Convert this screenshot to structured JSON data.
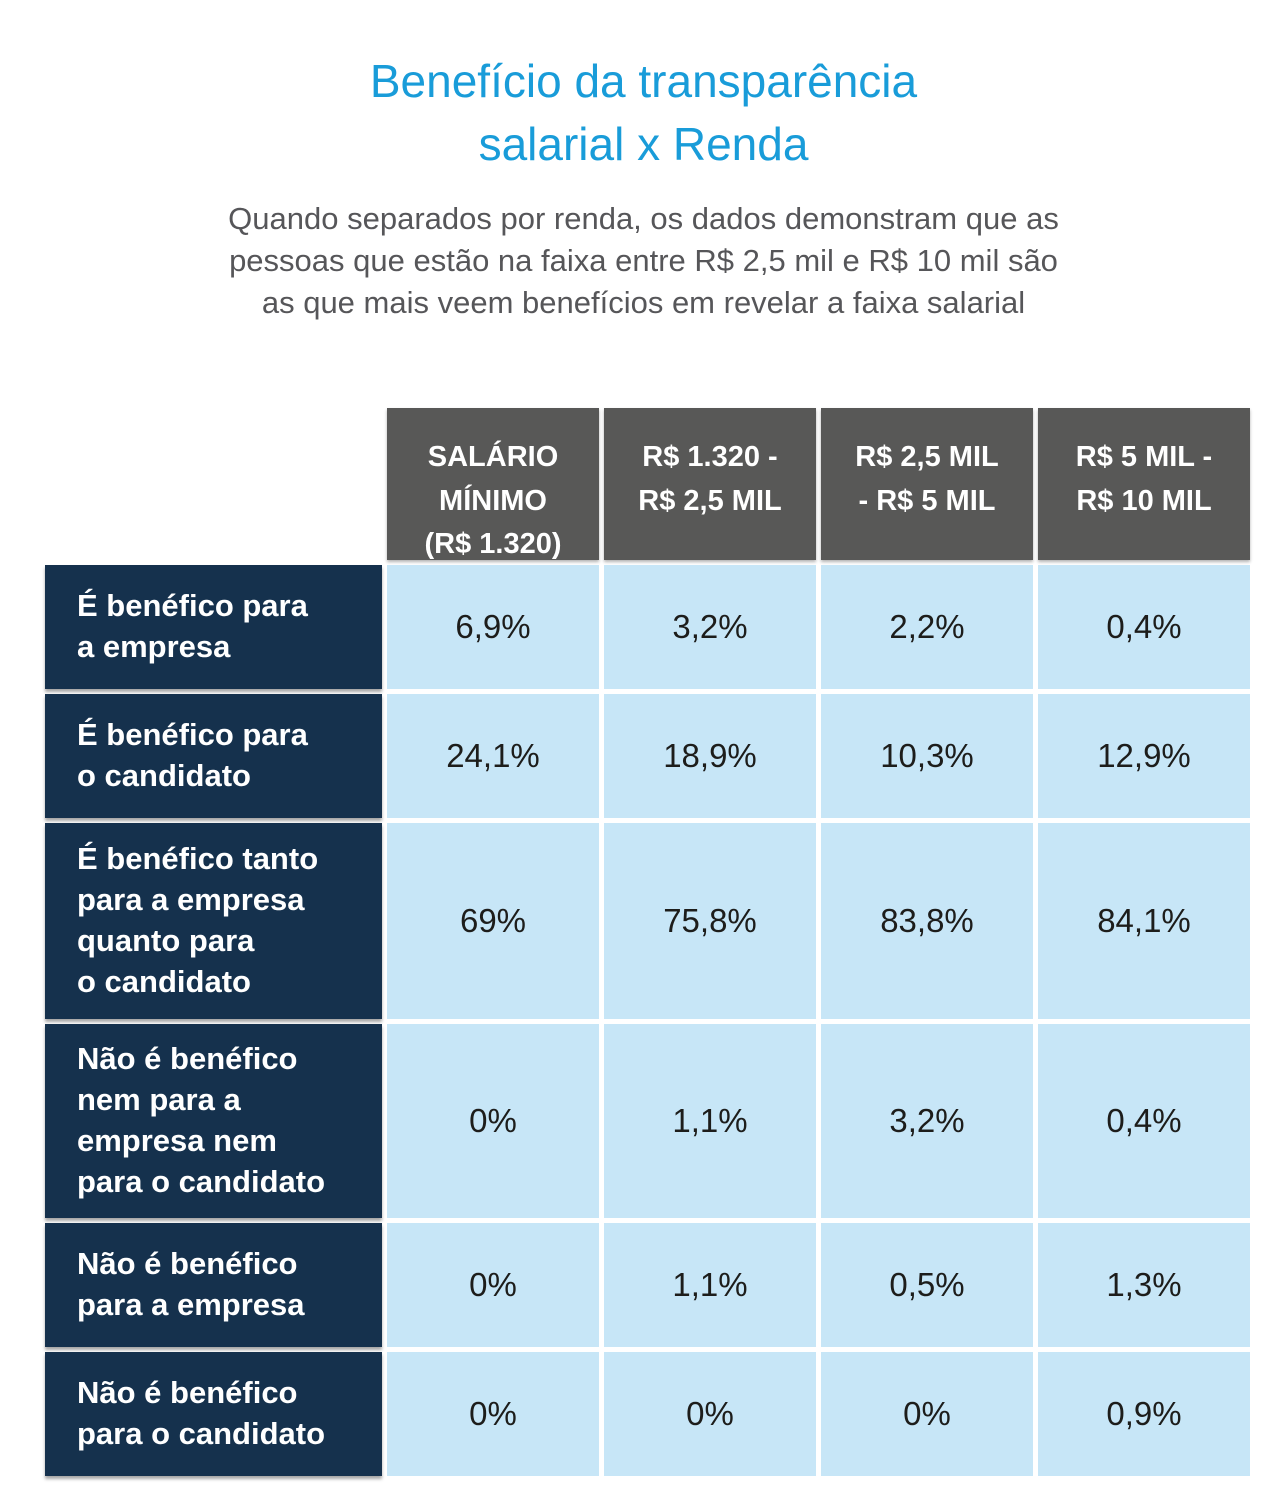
{
  "page": {
    "title": "Benefício da transparência\nsalarial x Renda",
    "subtitle": "Quando separados por renda, os dados demonstram que as\npessoas que estão na faixa entre R$ 2,5 mil e R$ 10 mil são\nas que mais veem benefícios em revelar a faixa salarial"
  },
  "colors": {
    "title_blue": "#199CD9",
    "subtitle_gray": "#565659",
    "header_bg": "#585857",
    "header_text": "#FFFFFF",
    "row_label_bg": "#15314D",
    "row_label_text": "#FFFFFF",
    "cell_bg": "#C7E6F7",
    "cell_text": "#1D1D1B",
    "page_bg": "#FFFFFF"
  },
  "chart_data": {
    "type": "table",
    "title": "Benefício da transparência salarial x Renda",
    "columns": [
      "SALÁRIO\nMÍNIMO\n(R$ 1.320)",
      "R$ 1.320 -\nR$ 2,5 MIL",
      "R$ 2,5 MIL\n- R$ 5 MIL",
      "R$ 5 MIL -\nR$ 10 MIL"
    ],
    "rows": [
      {
        "label": "É benéfico para\na empresa",
        "values": [
          "6,9%",
          "3,2%",
          "2,2%",
          "0,4%"
        ]
      },
      {
        "label": "É benéfico para\no candidato",
        "values": [
          "24,1%",
          "18,9%",
          "10,3%",
          "12,9%"
        ]
      },
      {
        "label": "É benéfico tanto\npara a empresa\nquanto para\no candidato",
        "values": [
          "69%",
          "75,8%",
          "83,8%",
          "84,1%"
        ]
      },
      {
        "label": "Não é benéfico\nnem para a\nempresa nem\npara o candidato",
        "values": [
          "0%",
          "1,1%",
          "3,2%",
          "0,4%"
        ]
      },
      {
        "label": "Não é benéfico\npara a empresa",
        "values": [
          "0%",
          "1,1%",
          "0,5%",
          "1,3%"
        ]
      },
      {
        "label": "Não é benéfico\npara o candidato",
        "values": [
          "0%",
          "0%",
          "0%",
          "0,9%"
        ]
      }
    ],
    "legend_position": "none",
    "grid": false
  }
}
